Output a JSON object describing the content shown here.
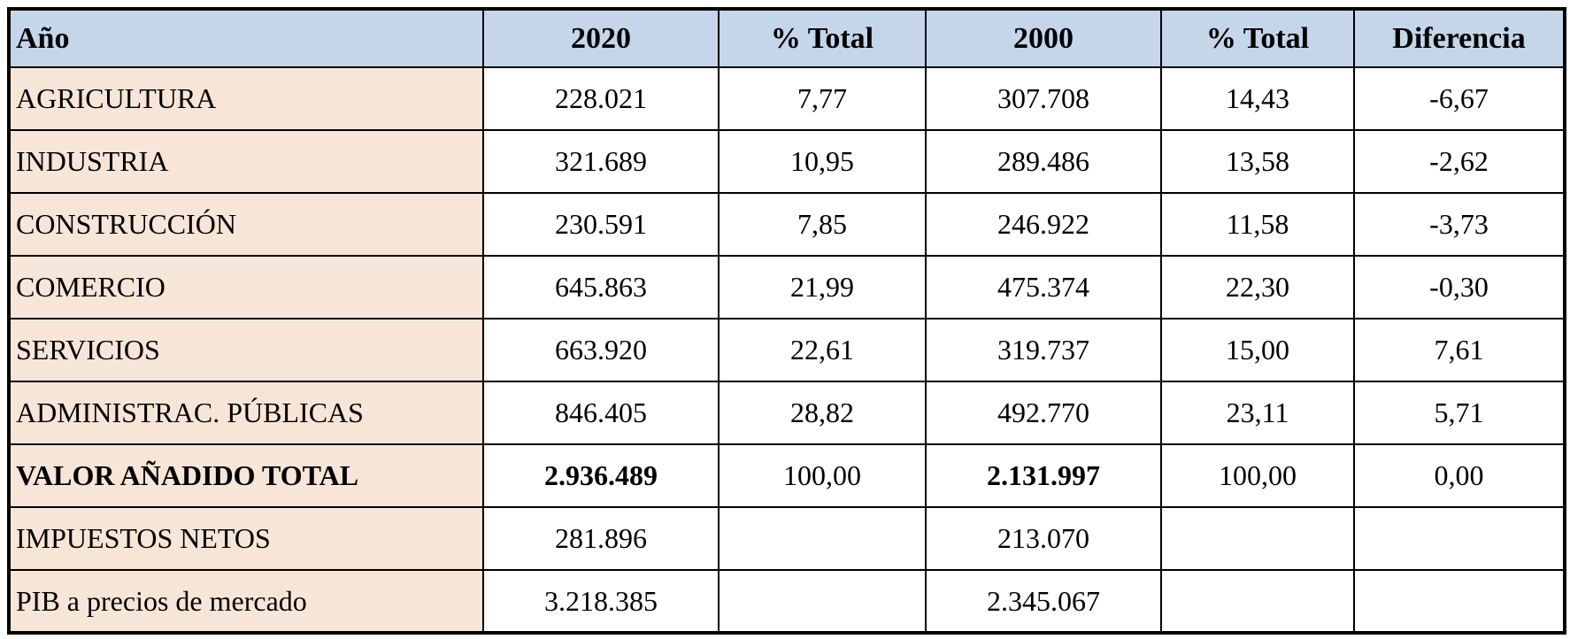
{
  "colors": {
    "header_bg": "#c5d6ea",
    "row_label_bg": "#f7e6d7",
    "cell_bg": "#ffffff",
    "border": "#000000",
    "text": "#000000"
  },
  "chart_data": {
    "type": "table",
    "columns": [
      "Año",
      "2020",
      "% Total",
      "2000",
      "% Total",
      "Diferencia"
    ],
    "rows": [
      {
        "label": "AGRICULTURA",
        "values": [
          "228.021",
          "7,77",
          "307.708",
          "14,43",
          "-6,67"
        ],
        "emphasis": false
      },
      {
        "label": "INDUSTRIA",
        "values": [
          "321.689",
          "10,95",
          "289.486",
          "13,58",
          "-2,62"
        ],
        "emphasis": false
      },
      {
        "label": "CONSTRUCCIÓN",
        "values": [
          "230.591",
          "7,85",
          "246.922",
          "11,58",
          "-3,73"
        ],
        "emphasis": false
      },
      {
        "label": "COMERCIO",
        "values": [
          "645.863",
          "21,99",
          "475.374",
          "22,30",
          "-0,30"
        ],
        "emphasis": false
      },
      {
        "label": "SERVICIOS",
        "values": [
          "663.920",
          "22,61",
          "319.737",
          "15,00",
          "7,61"
        ],
        "emphasis": false
      },
      {
        "label": "ADMINISTRAC. PÚBLICAS",
        "values": [
          "846.405",
          "28,82",
          "492.770",
          "23,11",
          "5,71"
        ],
        "emphasis": false
      },
      {
        "label": "VALOR AÑADIDO TOTAL",
        "values": [
          "2.936.489",
          "100,00",
          "2.131.997",
          "100,00",
          "0,00"
        ],
        "emphasis": true
      },
      {
        "label": "IMPUESTOS NETOS",
        "values": [
          "281.896",
          "",
          "213.070",
          "",
          ""
        ],
        "emphasis": false
      },
      {
        "label": "PIB a precios de mercado",
        "values": [
          "3.218.385",
          "",
          "2.345.067",
          "",
          ""
        ],
        "emphasis": false
      }
    ]
  }
}
